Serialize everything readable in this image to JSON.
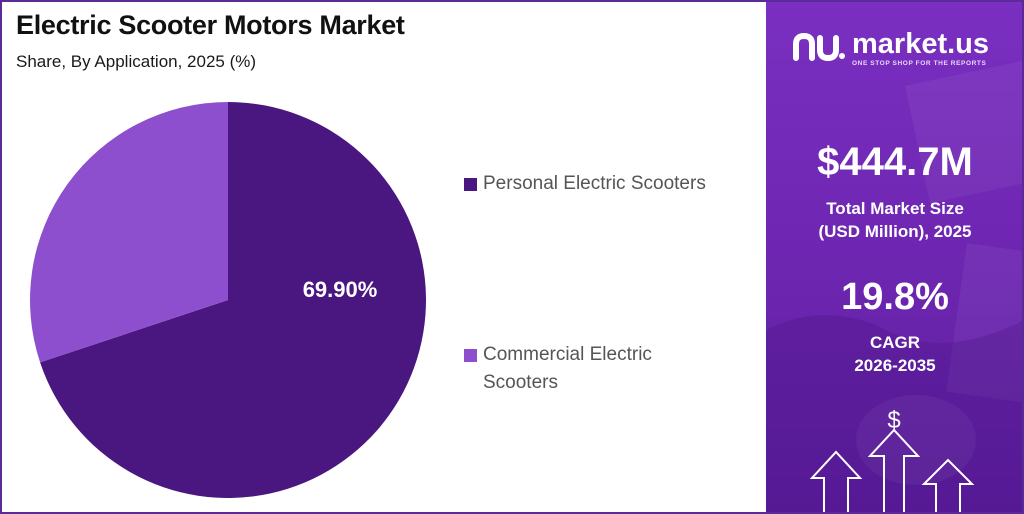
{
  "header": {
    "title": "Electric Scooter Motors Market",
    "subtitle": "Share, By Application, 2025 (%)"
  },
  "chart_data": {
    "type": "pie",
    "categories": [
      "Personal Electric Scooters",
      "Commercial Electric Scooters"
    ],
    "values": [
      69.9,
      30.1
    ],
    "value_unit": "%",
    "data_labels": [
      "69.90%",
      ""
    ],
    "colors": [
      "#4a1680",
      "#8e4fce"
    ],
    "legend_placement": "right"
  },
  "legend": {
    "items": [
      {
        "label": "Personal Electric Scooters",
        "color": "#4a1680"
      },
      {
        "label": "Commercial Electric Scooters",
        "color": "#8e4fce"
      }
    ]
  },
  "sidebar": {
    "brand_name": "market.us",
    "brand_tagline": "ONE STOP SHOP FOR THE REPORTS",
    "market_size_value": "$444.7M",
    "market_size_label_line1": "Total Market Size",
    "market_size_label_line2": "(USD Million), 2025",
    "cagr_value": "19.8%",
    "cagr_label_line1": "CAGR",
    "cagr_label_line2": "2026-2035",
    "dollar_symbol": "$",
    "accent_color": "#6f27b3"
  }
}
